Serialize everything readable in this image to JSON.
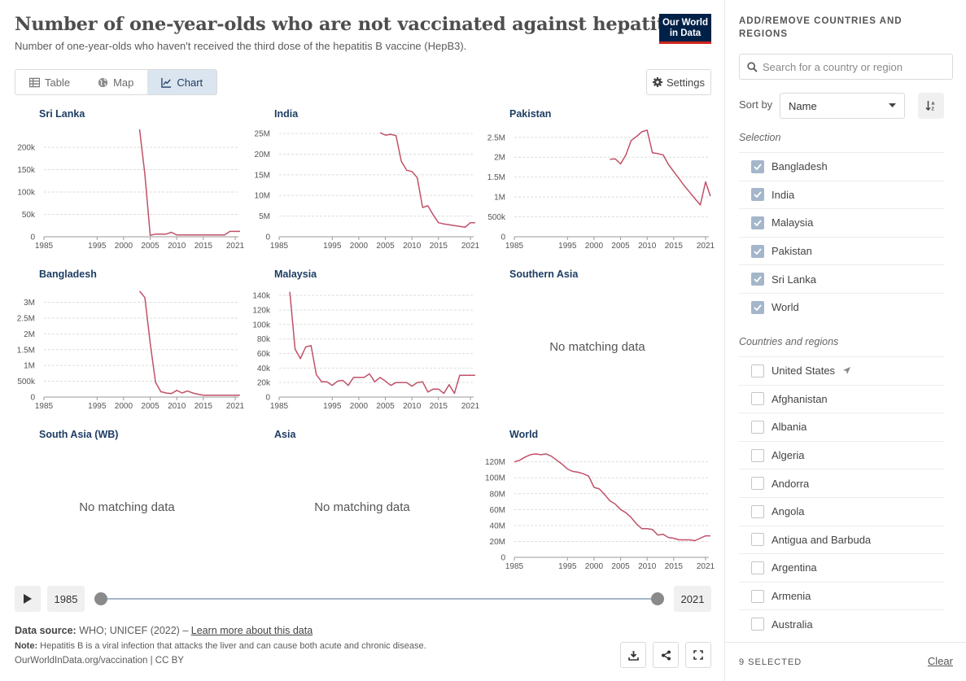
{
  "header": {
    "title": "Number of one-year-olds who are not vaccinated against hepatitis B",
    "subtitle": "Number of one-year-olds who haven't received the third dose of the hepatitis B vaccine (HepB3).",
    "logo_line1": "Our World",
    "logo_line2": "in Data"
  },
  "tabs": [
    {
      "label": "Table",
      "icon": "table-icon"
    },
    {
      "label": "Map",
      "icon": "globe-icon"
    },
    {
      "label": "Chart",
      "icon": "line-chart-icon",
      "active": true
    }
  ],
  "settings_label": "Settings",
  "chart_data": {
    "type": "line",
    "layout": "small-multiples",
    "color": "#b13507",
    "line_color": "#c05168",
    "x_ticks": [
      1985,
      1995,
      2000,
      2005,
      2010,
      2015,
      2021
    ],
    "no_data_text": "No matching data",
    "panels": [
      {
        "title": "Sri Lanka",
        "yticks": [
          0,
          50000,
          100000,
          150000,
          200000
        ],
        "yticklabels": [
          "0",
          "50k",
          "100k",
          "150k",
          "200k"
        ],
        "ylim": [
          0,
          240000
        ],
        "x": [
          2003,
          2004,
          2005,
          2006,
          2007,
          2008,
          2009,
          2010,
          2011,
          2012,
          2013,
          2014,
          2015,
          2016,
          2017,
          2018,
          2019,
          2020,
          2021,
          2022
        ],
        "y": [
          240000,
          140000,
          3000,
          6000,
          6000,
          6000,
          10000,
          4000,
          4000,
          4000,
          4000,
          4000,
          4000,
          4000,
          4000,
          4000,
          4000,
          12000,
          12000,
          12000
        ]
      },
      {
        "title": "India",
        "yticks": [
          0,
          5000000,
          10000000,
          15000000,
          20000000,
          25000000
        ],
        "yticklabels": [
          "0",
          "5M",
          "10M",
          "15M",
          "20M",
          "25M"
        ],
        "ylim": [
          0,
          26000000
        ],
        "x": [
          2004,
          2005,
          2006,
          2007,
          2008,
          2009,
          2010,
          2011,
          2012,
          2013,
          2014,
          2015,
          2016,
          2017,
          2018,
          2019,
          2020,
          2021,
          2022
        ],
        "y": [
          25200000,
          24600000,
          24800000,
          24500000,
          18300000,
          16100000,
          15800000,
          14300000,
          7100000,
          7500000,
          5300000,
          3400000,
          3100000,
          2900000,
          2700000,
          2500000,
          2300000,
          3400000,
          3400000
        ]
      },
      {
        "title": "Pakistan",
        "yticks": [
          0,
          500000,
          1000000,
          1500000,
          2000000,
          2500000
        ],
        "yticklabels": [
          "0",
          "500k",
          "1M",
          "1.5M",
          "2M",
          "2.5M"
        ],
        "ylim": [
          0,
          2700000
        ],
        "x": [
          2003,
          2004,
          2005,
          2006,
          2007,
          2008,
          2009,
          2010,
          2011,
          2012,
          2013,
          2014,
          2015,
          2016,
          2017,
          2018,
          2019,
          2020,
          2021,
          2022
        ],
        "y": [
          1950000,
          1960000,
          1830000,
          2060000,
          2420000,
          2520000,
          2640000,
          2680000,
          2110000,
          2090000,
          2060000,
          1820000,
          1640000,
          1460000,
          1280000,
          1120000,
          960000,
          800000,
          1380000,
          1020000
        ]
      },
      {
        "title": "Bangladesh",
        "yticks": [
          0,
          500000,
          1000000,
          1500000,
          2000000,
          2500000,
          3000000
        ],
        "yticklabels": [
          "0",
          "500k",
          "1M",
          "1.5M",
          "2M",
          "2.5M",
          "3M"
        ],
        "ylim": [
          0,
          3400000
        ],
        "x": [
          2003,
          2004,
          2005,
          2006,
          2007,
          2008,
          2009,
          2010,
          2011,
          2012,
          2013,
          2014,
          2015,
          2016,
          2017,
          2018,
          2019,
          2020,
          2021,
          2022
        ],
        "y": [
          3350000,
          3150000,
          1700000,
          470000,
          170000,
          130000,
          110000,
          210000,
          130000,
          190000,
          130000,
          90000,
          60000,
          60000,
          60000,
          60000,
          60000,
          60000,
          60000,
          60000
        ]
      },
      {
        "title": "Malaysia",
        "yticks": [
          0,
          20000,
          40000,
          60000,
          80000,
          100000,
          120000,
          140000
        ],
        "yticklabels": [
          "0",
          "20k",
          "40k",
          "60k",
          "80k",
          "100k",
          "120k",
          "140k"
        ],
        "ylim": [
          0,
          148000
        ],
        "x": [
          1987,
          1988,
          1989,
          1990,
          1991,
          1992,
          1993,
          1994,
          1995,
          1996,
          1997,
          1998,
          1999,
          2000,
          2001,
          2002,
          2003,
          2004,
          2005,
          2006,
          2007,
          2008,
          2009,
          2010,
          2011,
          2012,
          2013,
          2014,
          2015,
          2016,
          2017,
          2018,
          2019,
          2020,
          2021,
          2022
        ],
        "y": [
          145000,
          66000,
          53000,
          69000,
          71000,
          31000,
          21000,
          21000,
          16000,
          22000,
          23000,
          16000,
          27000,
          27000,
          27000,
          32000,
          21000,
          27000,
          22000,
          16000,
          20000,
          20000,
          20000,
          15000,
          20000,
          21000,
          7000,
          11000,
          11000,
          5000,
          17000,
          5000,
          30000,
          30000,
          30000,
          30000
        ]
      },
      {
        "title": "Southern Asia",
        "no_data": true
      },
      {
        "title": "South Asia (WB)",
        "no_data": true
      },
      {
        "title": "Asia",
        "no_data": true
      },
      {
        "title": "World",
        "yticks": [
          0,
          20000000,
          40000000,
          60000000,
          80000000,
          100000000,
          120000000
        ],
        "yticklabels": [
          "0",
          "20M",
          "40M",
          "60M",
          "80M",
          "100M",
          "120M"
        ],
        "ylim": [
          0,
          135000000
        ],
        "x": [
          1985,
          1986,
          1987,
          1988,
          1989,
          1990,
          1991,
          1992,
          1993,
          1994,
          1995,
          1996,
          1997,
          1998,
          1999,
          2000,
          2001,
          2002,
          2003,
          2004,
          2005,
          2006,
          2007,
          2008,
          2009,
          2010,
          2011,
          2012,
          2013,
          2014,
          2015,
          2016,
          2017,
          2018,
          2019,
          2020,
          2021,
          2022
        ],
        "y": [
          120000000,
          122000000,
          126000000,
          129000000,
          130000000,
          129000000,
          130000000,
          127000000,
          122000000,
          117000000,
          111000000,
          108000000,
          107000000,
          105000000,
          102000000,
          88000000,
          86000000,
          79000000,
          71000000,
          67000000,
          60000000,
          56000000,
          50000000,
          42000000,
          36000000,
          36000000,
          35000000,
          28000000,
          29000000,
          25000000,
          24000000,
          22000000,
          22000000,
          22000000,
          21000000,
          24000000,
          27000000,
          27000000
        ]
      }
    ]
  },
  "timeline": {
    "start": "1985",
    "end": "2021"
  },
  "footer": {
    "source_label": "Data source:",
    "source_text": "WHO; UNICEF (2022) –",
    "learn_more": "Learn more about this data",
    "note_label": "Note:",
    "note_text": "Hepatitis B is a viral infection that attacks the liver and can cause both acute and chronic disease.",
    "url": "OurWorldInData.org/vaccination | CC BY"
  },
  "sidebar": {
    "heading": "ADD/REMOVE COUNTRIES AND REGIONS",
    "search_placeholder": "Search for a country or region",
    "sort_label": "Sort by",
    "sort_value": "Name",
    "selection_label": "Selection",
    "selected": [
      "Bangladesh",
      "India",
      "Malaysia",
      "Pakistan",
      "Sri Lanka",
      "World"
    ],
    "countries_label": "Countries and regions",
    "countries": [
      "United States",
      "Afghanistan",
      "Albania",
      "Algeria",
      "Andorra",
      "Angola",
      "Antigua and Barbuda",
      "Argentina",
      "Armenia",
      "Australia"
    ],
    "selected_count": "9 SELECTED",
    "clear_label": "Clear"
  }
}
